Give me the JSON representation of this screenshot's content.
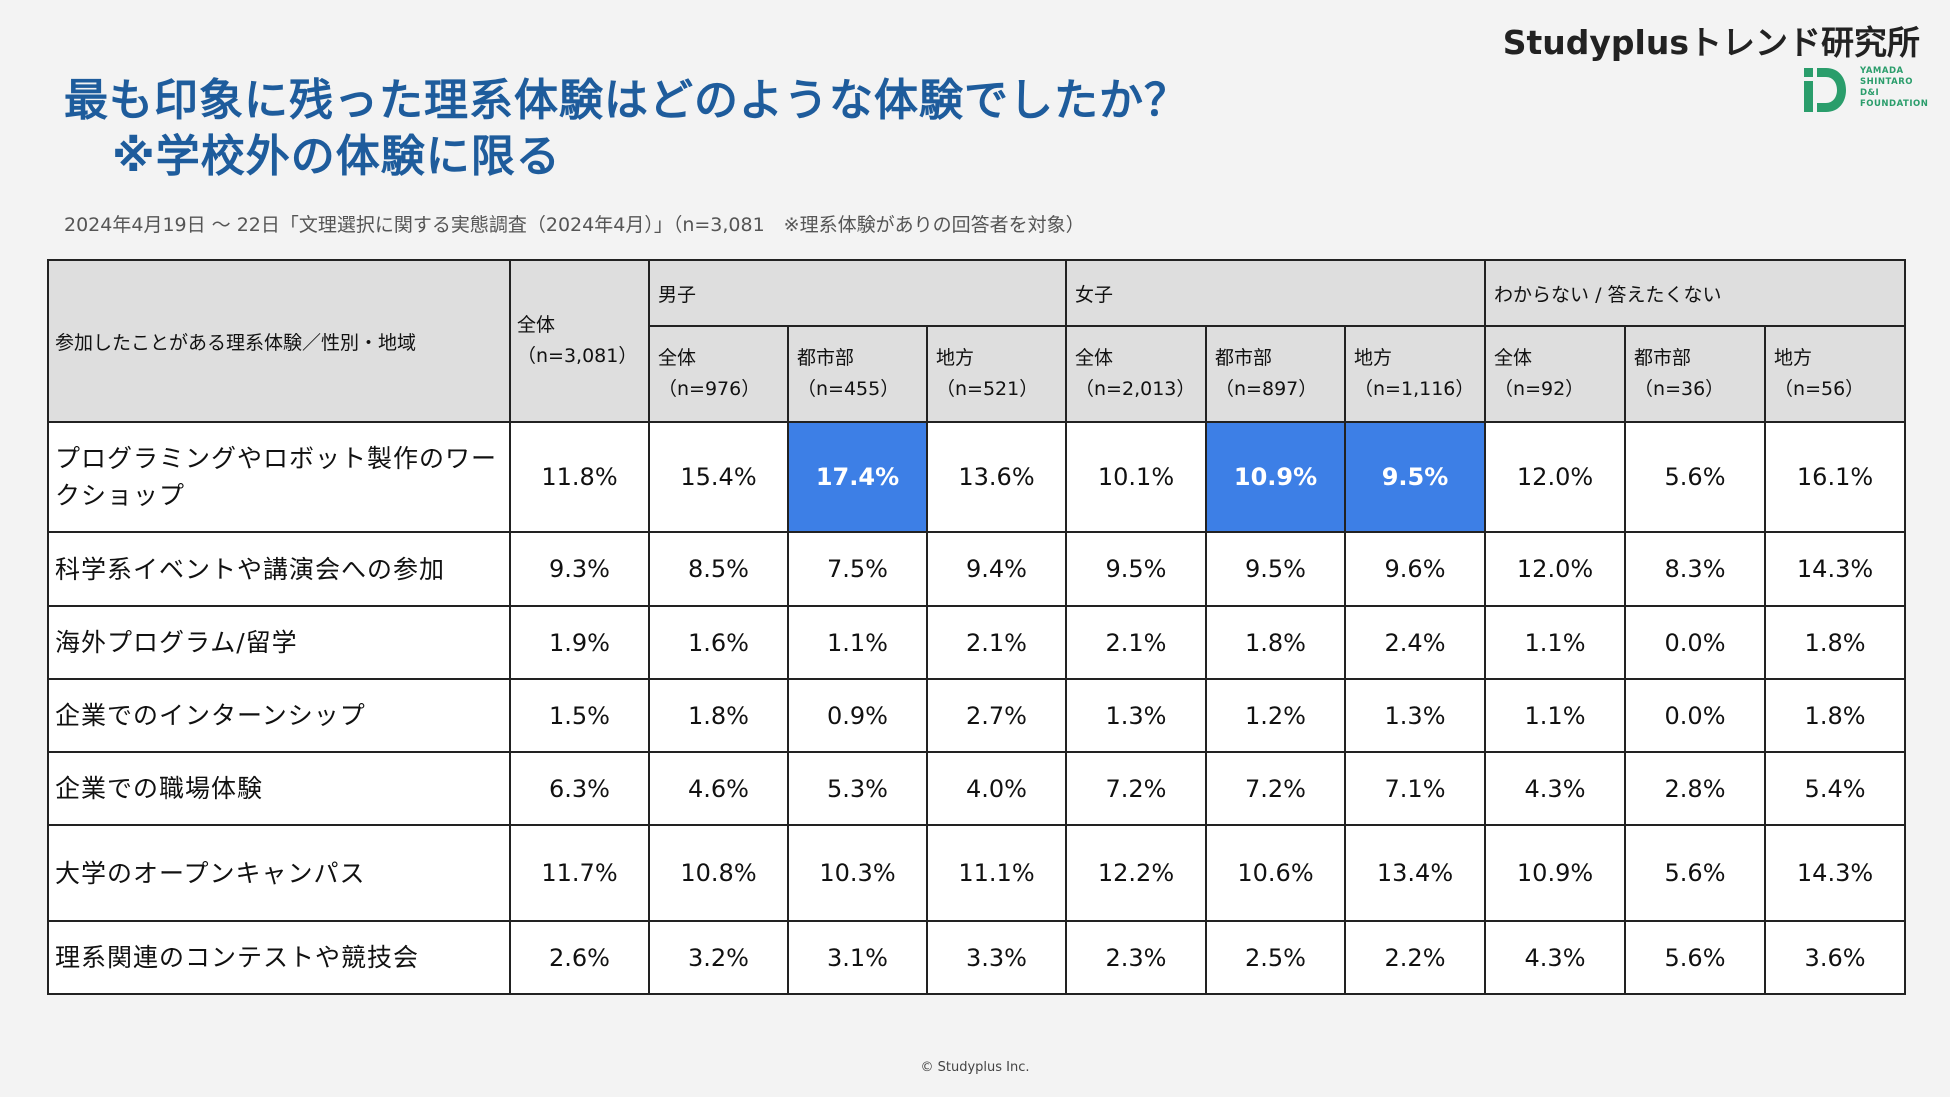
{
  "title": {
    "line1": "最も印象に残った理系体験はどのような体験でしたか？",
    "line2": "※学校外の体験に限る"
  },
  "brand": "Studyplusトレンド研究所",
  "logo": {
    "words": [
      "YAMADA",
      "SHINTARO",
      "D&I",
      "FOUNDATION"
    ],
    "icon": "id-logo-icon",
    "color": "#2a9d6b"
  },
  "subtitle": "2024年4月19日 〜 22日「文理選択に関する実態調査（2024年4月）」（n=3,081　※理系体験がありの回答者を対象）",
  "table": {
    "corner_label": "参加したことがある理系体験／性別・地域",
    "all": {
      "label": "全体",
      "n": "（n=3,081）"
    },
    "groups": [
      {
        "label": "男子",
        "subs": [
          {
            "label": "全体",
            "n": "（n=976）"
          },
          {
            "label": "都市部",
            "n": "（n=455）"
          },
          {
            "label": "地方",
            "n": "（n=521）"
          }
        ]
      },
      {
        "label": "女子",
        "subs": [
          {
            "label": "全体",
            "n": "（n=2,013）"
          },
          {
            "label": "都市部",
            "n": "（n=897）"
          },
          {
            "label": "地方",
            "n": "（n=1,116）"
          }
        ]
      },
      {
        "label": "わからない / 答えたくない",
        "subs": [
          {
            "label": "全体",
            "n": "（n=92）"
          },
          {
            "label": "都市部",
            "n": "（n=36）"
          },
          {
            "label": "地方",
            "n": "（n=56）"
          }
        ]
      }
    ],
    "highlight_color": "#3d7fe6",
    "rows": [
      {
        "label": "プログラミングやロボット製作のワークショップ",
        "values": [
          "11.8%",
          "15.4%",
          "17.4%",
          "13.6%",
          "10.1%",
          "10.9%",
          "9.5%",
          "12.0%",
          "5.6%",
          "16.1%"
        ],
        "highlight": [
          2,
          5,
          6
        ]
      },
      {
        "label": "科学系イベントや講演会への参加",
        "values": [
          "9.3%",
          "8.5%",
          "7.5%",
          "9.4%",
          "9.5%",
          "9.5%",
          "9.6%",
          "12.0%",
          "8.3%",
          "14.3%"
        ],
        "highlight": []
      },
      {
        "label": "海外プログラム/留学",
        "values": [
          "1.9%",
          "1.6%",
          "1.1%",
          "2.1%",
          "2.1%",
          "1.8%",
          "2.4%",
          "1.1%",
          "0.0%",
          "1.8%"
        ],
        "highlight": []
      },
      {
        "label": "企業でのインターンシップ",
        "values": [
          "1.5%",
          "1.8%",
          "0.9%",
          "2.7%",
          "1.3%",
          "1.2%",
          "1.3%",
          "1.1%",
          "0.0%",
          "1.8%"
        ],
        "highlight": []
      },
      {
        "label": "企業での職場体験",
        "values": [
          "6.3%",
          "4.6%",
          "5.3%",
          "4.0%",
          "7.2%",
          "7.2%",
          "7.1%",
          "4.3%",
          "2.8%",
          "5.4%"
        ],
        "highlight": []
      },
      {
        "label": "大学のオープンキャンパス",
        "values": [
          "11.7%",
          "10.8%",
          "10.3%",
          "11.1%",
          "12.2%",
          "10.6%",
          "13.4%",
          "10.9%",
          "5.6%",
          "14.3%"
        ],
        "highlight": []
      },
      {
        "label": "理系関連のコンテストや競技会",
        "values": [
          "2.6%",
          "3.2%",
          "3.1%",
          "3.3%",
          "2.3%",
          "2.5%",
          "2.2%",
          "4.3%",
          "5.6%",
          "3.6%"
        ],
        "highlight": []
      }
    ]
  },
  "footer": "© Studyplus Inc."
}
